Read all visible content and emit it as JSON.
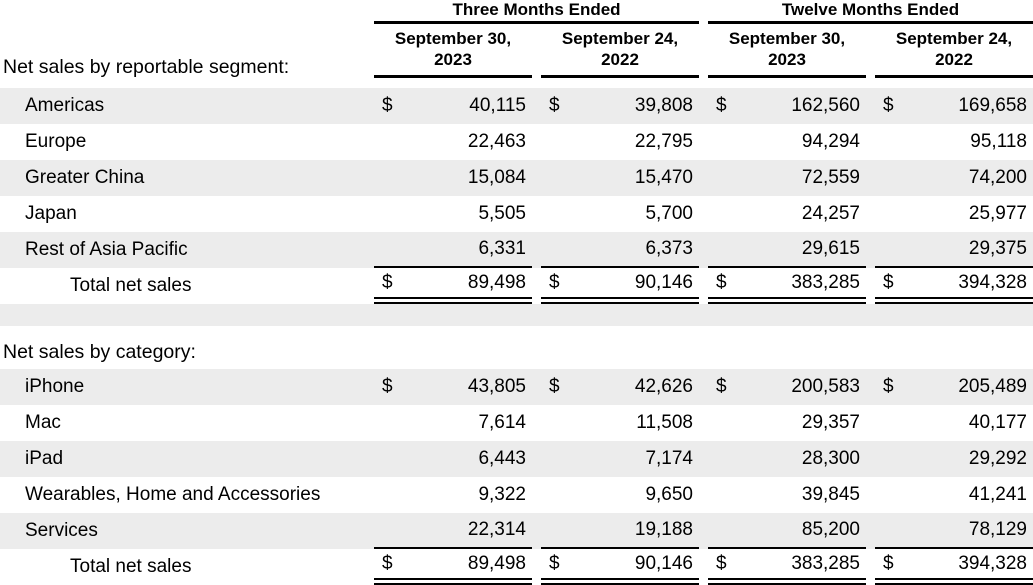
{
  "table": {
    "currency_symbol": "$",
    "colors": {
      "stripe": "#ececec",
      "text": "#000000",
      "rule": "#000000"
    },
    "col_groups": [
      {
        "title": "Three Months Ended",
        "columns": [
          "September 30, 2023",
          "September 24, 2022"
        ]
      },
      {
        "title": "Twelve Months Ended",
        "columns": [
          "September 30, 2023",
          "September 24, 2022"
        ]
      }
    ],
    "sections": [
      {
        "label": "Net sales by reportable segment:",
        "rows": [
          {
            "label": "Americas",
            "dollar": true,
            "values": [
              "40,115",
              "39,808",
              "162,560",
              "169,658"
            ]
          },
          {
            "label": "Europe",
            "dollar": false,
            "values": [
              "22,463",
              "22,795",
              "94,294",
              "95,118"
            ]
          },
          {
            "label": "Greater China",
            "dollar": false,
            "values": [
              "15,084",
              "15,470",
              "72,559",
              "74,200"
            ]
          },
          {
            "label": "Japan",
            "dollar": false,
            "values": [
              "5,505",
              "5,700",
              "24,257",
              "25,977"
            ]
          },
          {
            "label": "Rest of Asia Pacific",
            "dollar": false,
            "rule_below": true,
            "values": [
              "6,331",
              "6,373",
              "29,615",
              "29,375"
            ]
          },
          {
            "label": "Total net sales",
            "dollar": true,
            "total": true,
            "values": [
              "89,498",
              "90,146",
              "383,285",
              "394,328"
            ]
          }
        ]
      },
      {
        "label": "Net sales by category:",
        "rows": [
          {
            "label": "iPhone",
            "dollar": true,
            "values": [
              "43,805",
              "42,626",
              "200,583",
              "205,489"
            ]
          },
          {
            "label": "Mac",
            "dollar": false,
            "values": [
              "7,614",
              "11,508",
              "29,357",
              "40,177"
            ]
          },
          {
            "label": "iPad",
            "dollar": false,
            "values": [
              "6,443",
              "7,174",
              "28,300",
              "29,292"
            ]
          },
          {
            "label": "Wearables, Home and Accessories",
            "dollar": false,
            "values": [
              "9,322",
              "9,650",
              "39,845",
              "41,241"
            ]
          },
          {
            "label": "Services",
            "dollar": false,
            "rule_below": true,
            "values": [
              "22,314",
              "19,188",
              "85,200",
              "78,129"
            ]
          },
          {
            "label": "Total net sales",
            "dollar": true,
            "total": true,
            "values": [
              "89,498",
              "90,146",
              "383,285",
              "394,328"
            ]
          }
        ]
      }
    ]
  }
}
